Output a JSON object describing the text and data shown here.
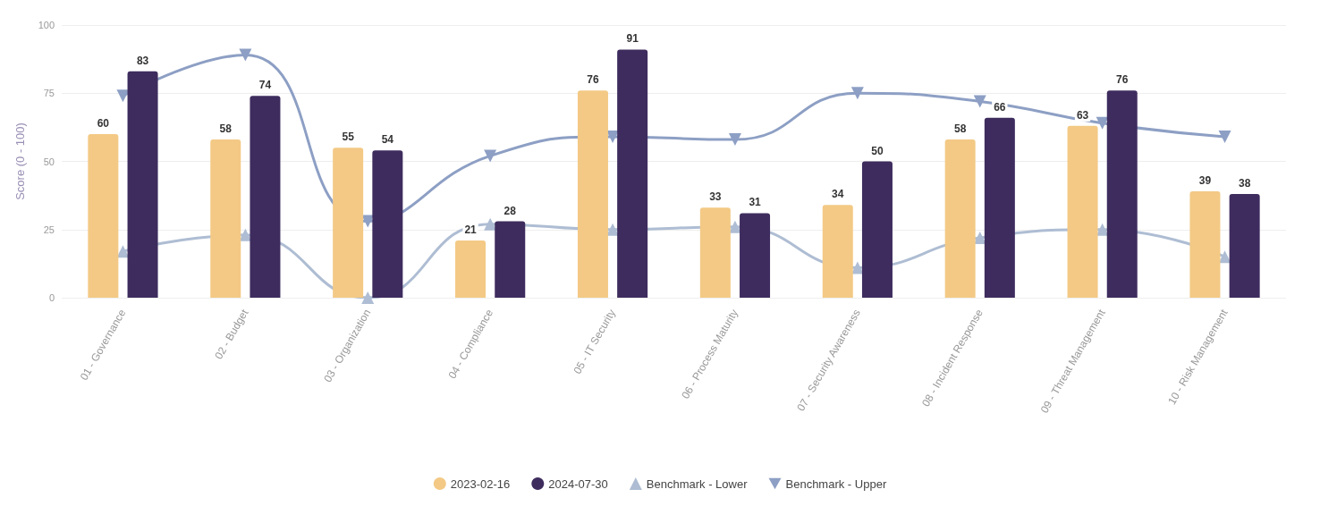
{
  "chart_data": {
    "type": "bar",
    "ylabel": "Score (0 - 100)",
    "categories": [
      "01 - Governance",
      "02 - Budget",
      "03 - Organization",
      "04 - Compliance",
      "05 - IT Security",
      "06 - Process Maturity",
      "07 - Security Awareness",
      "08 - Incident Response",
      "09 - Threat Management",
      "10 - Risk Management"
    ],
    "series": [
      {
        "name": "2023-02-16",
        "color": "#f3c985",
        "values": [
          60,
          58,
          55,
          21,
          76,
          33,
          34,
          58,
          63,
          39
        ],
        "data_labels": true
      },
      {
        "name": "2024-07-30",
        "color": "#3e2c5e",
        "values": [
          83,
          74,
          54,
          28,
          91,
          31,
          50,
          66,
          76,
          38
        ],
        "data_labels": true
      },
      {
        "name": "Benchmark - Lower",
        "type": "line",
        "color": "#aebdd3",
        "marker": "triangle",
        "values": [
          17,
          23,
          0,
          27,
          25,
          26,
          11,
          22,
          25,
          15
        ]
      },
      {
        "name": "Benchmark - Upper",
        "type": "line",
        "color": "#8d9fc4",
        "marker": "triangle-down",
        "values": [
          74,
          89,
          28,
          52,
          59,
          58,
          75,
          72,
          64,
          59
        ]
      }
    ],
    "ylim": [
      0,
      100
    ],
    "yticks": [
      0,
      25,
      50,
      75,
      100
    ],
    "grid": "y",
    "legend": "bottom"
  }
}
